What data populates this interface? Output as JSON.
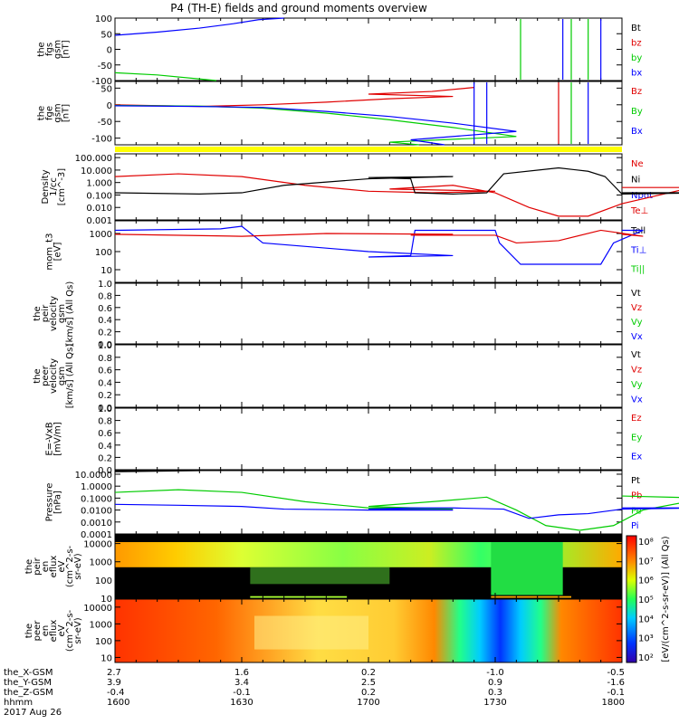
{
  "title": "P4 (TH-E) fields and ground moments overview",
  "colors": {
    "black": "#000000",
    "red": "#e00000",
    "green": "#00cc00",
    "blue": "#0000ff",
    "yellow": "#ffff00"
  },
  "chart_data": [
    {
      "id": "fgs",
      "type": "line",
      "ylabel": [
        "the",
        "fgs",
        "gsm",
        "[nT]"
      ],
      "ylim": [
        -100,
        100
      ],
      "yticks": [
        {
          "v": 100,
          "label": "100"
        },
        {
          "v": 50,
          "label": "50"
        },
        {
          "v": 0,
          "label": "0"
        },
        {
          "v": -50,
          "label": "-50"
        },
        {
          "v": -100,
          "label": "-100"
        }
      ],
      "legend": [
        {
          "name": "Bt",
          "color": "#000000"
        },
        {
          "name": "bz",
          "color": "#e00000"
        },
        {
          "name": "by",
          "color": "#00cc00"
        },
        {
          "name": "bx",
          "color": "#0000ff"
        }
      ],
      "series": [
        {
          "name": "bx",
          "color": "#0000ff",
          "x": [
            1600,
            1610,
            1620,
            1628,
            1634,
            1640
          ],
          "y": [
            45,
            55,
            68,
            82,
            95,
            105
          ]
        },
        {
          "name": "by",
          "color": "#00cc00",
          "x": [
            1600,
            1610,
            1620,
            1624
          ],
          "y": [
            -75,
            -82,
            -95,
            -102
          ]
        }
      ]
    },
    {
      "id": "fge",
      "type": "line",
      "ylabel": [
        "the",
        "fge",
        "gsm",
        "[nT]"
      ],
      "ylim": [
        -120,
        70
      ],
      "yticks": [
        {
          "v": 50,
          "label": "50"
        },
        {
          "v": 0,
          "label": "0"
        },
        {
          "v": -50,
          "label": "-50"
        },
        {
          "v": -100,
          "label": "-100"
        }
      ],
      "legend": [
        {
          "name": "Bz",
          "color": "#e00000"
        },
        {
          "name": "By",
          "color": "#00cc00"
        },
        {
          "name": "Bx",
          "color": "#0000ff"
        }
      ],
      "series": [
        {
          "name": "Bz",
          "color": "#e00000",
          "x": [
            1600,
            1620,
            1635,
            1650,
            1665,
            1680,
            1700,
            1715,
            1725
          ],
          "y": [
            0,
            -5,
            0,
            8,
            18,
            25,
            32,
            40,
            52
          ]
        },
        {
          "name": "By",
          "color": "#00cc00",
          "x": [
            1600,
            1620,
            1635,
            1650,
            1665,
            1680,
            1695,
            1705,
            1712
          ],
          "y": [
            -2,
            -4,
            -10,
            -25,
            -45,
            -68,
            -95,
            -112,
            -120
          ]
        },
        {
          "name": "Bx",
          "color": "#0000ff",
          "x": [
            1600,
            1620,
            1635,
            1650,
            1665,
            1680,
            1695,
            1710,
            1718
          ],
          "y": [
            -3,
            -5,
            -8,
            -20,
            -35,
            -55,
            -80,
            -105,
            -120
          ]
        }
      ]
    },
    {
      "id": "density",
      "type": "line",
      "scale": "log",
      "ylabel": [
        "Density",
        "1/cc",
        "[cm^-3]"
      ],
      "ylim": [
        0.001,
        200
      ],
      "yticks": [
        {
          "v": 100,
          "label": "100.000"
        },
        {
          "v": 10,
          "label": "10.000"
        },
        {
          "v": 1,
          "label": "1.000"
        },
        {
          "v": 0.1,
          "label": "0.100"
        },
        {
          "v": 0.01,
          "label": "0.010"
        },
        {
          "v": 0.001,
          "label": "0.001"
        }
      ],
      "legend": [
        {
          "name": "Ne",
          "color": "#e00000"
        },
        {
          "name": "Ni",
          "color": "#000000"
        },
        {
          "name": "Npot",
          "color": "#0000ff"
        },
        {
          "name": "Te⊥",
          "color": "#e00000"
        }
      ],
      "series": [
        {
          "name": "Ne",
          "color": "#e00000",
          "x": [
            1600,
            1615,
            1630,
            1645,
            1660,
            1675,
            1690,
            1705,
            1720,
            1730,
            1738,
            1745,
            1752,
            1760,
            1775,
            1790,
            1800
          ],
          "y": [
            3,
            5,
            3,
            0.6,
            0.2,
            0.15,
            0.2,
            0.3,
            0.6,
            0.15,
            0.01,
            0.002,
            0.002,
            0.02,
            0.3,
            0.4,
            0.4
          ]
        },
        {
          "name": "Ni",
          "color": "#000000",
          "x": [
            1600,
            1620,
            1630,
            1640,
            1660,
            1680,
            1700,
            1710,
            1711,
            1720,
            1728,
            1732,
            1745,
            1752,
            1756,
            1760,
            1780,
            1800
          ],
          "y": [
            0.15,
            0.12,
            0.15,
            0.6,
            2,
            3,
            2.5,
            2,
            0.15,
            0.12,
            0.15,
            5,
            15,
            8,
            3,
            0.12,
            0.15,
            0.15
          ]
        }
      ]
    },
    {
      "id": "mom_t3",
      "type": "line",
      "scale": "log",
      "ylabel": [
        "mom_t3",
        "[eV]"
      ],
      "ylim": [
        2,
        5000
      ],
      "yticks": [
        {
          "v": 1000,
          "label": "1000"
        },
        {
          "v": 100,
          "label": "100"
        },
        {
          "v": 10,
          "label": "10"
        }
      ],
      "legend": [
        {
          "name": "Tell",
          "color": "#000000"
        },
        {
          "name": "Ti⊥",
          "color": "#0000ff"
        },
        {
          "name": "Ti||",
          "color": "#00cc00"
        }
      ],
      "series": [
        {
          "name": "Ti",
          "color": "#0000ff",
          "x": [
            1600,
            1625,
            1630,
            1635,
            1660,
            1680,
            1700,
            1710,
            1711,
            1730,
            1731,
            1736,
            1755,
            1758,
            1765,
            1800
          ],
          "y": [
            1500,
            1800,
            2500,
            300,
            100,
            60,
            50,
            60,
            1500,
            1500,
            300,
            20,
            20,
            300,
            1500,
            1500
          ]
        },
        {
          "name": "Te",
          "color": "#e00000",
          "x": [
            1600,
            1630,
            1650,
            1680,
            1710,
            1730,
            1735,
            1745,
            1755,
            1765,
            1800
          ],
          "y": [
            900,
            700,
            1000,
            900,
            800,
            800,
            300,
            400,
            1500,
            700,
            900
          ]
        }
      ]
    },
    {
      "id": "peir_velocity",
      "type": "line",
      "ylabel": [
        "the",
        "peir",
        "velocity",
        "gsm",
        "[km/s] (All Qs)"
      ],
      "ylim": [
        0,
        1
      ],
      "yticks": [
        {
          "v": 1,
          "label": "1.0"
        },
        {
          "v": 0.8,
          "label": "0.8"
        },
        {
          "v": 0.6,
          "label": "0.6"
        },
        {
          "v": 0.4,
          "label": "0.4"
        },
        {
          "v": 0.2,
          "label": "0.2"
        },
        {
          "v": 0,
          "label": "0.0"
        }
      ],
      "legend": [
        {
          "name": "Vt",
          "color": "#000000"
        },
        {
          "name": "Vz",
          "color": "#e00000"
        },
        {
          "name": "Vy",
          "color": "#00cc00"
        },
        {
          "name": "Vx",
          "color": "#0000ff"
        }
      ],
      "series": []
    },
    {
      "id": "peer_velocity",
      "type": "line",
      "ylabel": [
        "the",
        "peer",
        "velocity",
        "gsm",
        "[km/s] (All Qs)"
      ],
      "ylim": [
        0,
        1
      ],
      "yticks": [
        {
          "v": 1,
          "label": "1.0"
        },
        {
          "v": 0.8,
          "label": "0.8"
        },
        {
          "v": 0.6,
          "label": "0.6"
        },
        {
          "v": 0.4,
          "label": "0.4"
        },
        {
          "v": 0.2,
          "label": "0.2"
        },
        {
          "v": 0,
          "label": "0.0"
        }
      ],
      "legend": [
        {
          "name": "Vt",
          "color": "#000000"
        },
        {
          "name": "Vz",
          "color": "#e00000"
        },
        {
          "name": "Vy",
          "color": "#00cc00"
        },
        {
          "name": "Vx",
          "color": "#0000ff"
        }
      ],
      "series": []
    },
    {
      "id": "e_vxb",
      "type": "line",
      "ylabel": [
        "E=-VxB",
        "[mV/m]"
      ],
      "ylim": [
        0,
        1
      ],
      "yticks": [
        {
          "v": 1,
          "label": "1.0"
        },
        {
          "v": 0.8,
          "label": "0.8"
        },
        {
          "v": 0.6,
          "label": "0.6"
        },
        {
          "v": 0.4,
          "label": "0.4"
        },
        {
          "v": 0.2,
          "label": "0.2"
        },
        {
          "v": 0,
          "label": "0.0"
        }
      ],
      "legend": [
        {
          "name": "Ez",
          "color": "#e00000"
        },
        {
          "name": "Ey",
          "color": "#00cc00"
        },
        {
          "name": "Ex",
          "color": "#0000ff"
        }
      ],
      "series": []
    },
    {
      "id": "pressure",
      "type": "line",
      "scale": "log",
      "ylabel": [
        "Pressure",
        "[nPa]"
      ],
      "ylim": [
        0.0001,
        20
      ],
      "yticks": [
        {
          "v": 10,
          "label": "10.0000"
        },
        {
          "v": 1,
          "label": "1.0000"
        },
        {
          "v": 0.1,
          "label": "0.1000"
        },
        {
          "v": 0.01,
          "label": "0.0100"
        },
        {
          "v": 0.001,
          "label": "0.0010"
        },
        {
          "v": 0.0001,
          "label": "0.0001"
        }
      ],
      "legend": [
        {
          "name": "Pt",
          "color": "#000000"
        },
        {
          "name": "Pb",
          "color": "#e00000"
        },
        {
          "name": "Pe",
          "color": "#00cc00"
        },
        {
          "name": "Pi",
          "color": "#0000ff"
        }
      ],
      "series": [
        {
          "name": "Pe",
          "color": "#00cc00",
          "x": [
            1600,
            1615,
            1630,
            1645,
            1660,
            1680,
            1700,
            1715,
            1728,
            1735,
            1742,
            1750,
            1758,
            1765,
            1780,
            1800
          ],
          "y": [
            0.3,
            0.5,
            0.3,
            0.05,
            0.015,
            0.012,
            0.02,
            0.05,
            0.12,
            0.01,
            0.0005,
            0.0002,
            0.0005,
            0.01,
            0.1,
            0.15
          ]
        },
        {
          "name": "Pi",
          "color": "#0000ff",
          "x": [
            1600,
            1615,
            1630,
            1640,
            1660,
            1680,
            1700,
            1710,
            1720,
            1732,
            1738,
            1745,
            1752,
            1760,
            1780,
            1800
          ],
          "y": [
            0.03,
            0.025,
            0.02,
            0.012,
            0.01,
            0.01,
            0.012,
            0.015,
            0.015,
            0.012,
            0.002,
            0.004,
            0.005,
            0.012,
            0.015,
            0.015
          ]
        },
        {
          "name": "Pt",
          "color": "#000000",
          "x": [
            1600,
            1620
          ],
          "y": [
            16,
            20
          ]
        }
      ]
    },
    {
      "id": "peir_spec",
      "type": "heatmap",
      "ylabel": [
        "the",
        "peir",
        "en",
        "eflux",
        "eV",
        "(cm^2-s-",
        "sr-eV)"
      ],
      "ylim": [
        10,
        30000
      ],
      "yticks": [
        {
          "v": 10000,
          "label": "10000"
        },
        {
          "v": 1000,
          "label": "1000"
        },
        {
          "v": 100,
          "label": "100"
        },
        {
          "v": 10,
          "label": "10"
        }
      ]
    },
    {
      "id": "peer_spec",
      "type": "heatmap",
      "ylabel": [
        "the",
        "peer",
        "en",
        "eflux",
        "eV",
        "(cm^2-s-",
        "sr-eV)"
      ],
      "ylim": [
        5,
        30000
      ],
      "yticks": [
        {
          "v": 10000,
          "label": "10000"
        },
        {
          "v": 1000,
          "label": "1000"
        },
        {
          "v": 100,
          "label": "100"
        },
        {
          "v": 10,
          "label": "10"
        }
      ]
    }
  ],
  "colorbar": {
    "ticks": [
      "10⁸",
      "10⁷",
      "10⁶",
      "10⁵",
      "10⁴",
      "10³",
      "10²"
    ],
    "label": "[eV/(cm^2-s-sr-eV)] (All Qs)"
  },
  "xaxis": {
    "labels": [
      "the_X-GSM",
      "the_Y-GSM",
      "the_Z-GSM",
      "hhmm",
      "2017 Aug 26"
    ],
    "ticks": [
      {
        "x": 1600,
        "vals": [
          "2.7",
          "3.9",
          "-0.4",
          "1600"
        ]
      },
      {
        "x": 1630,
        "vals": [
          "1.6",
          "3.4",
          "-0.1",
          "1630"
        ]
      },
      {
        "x": 1700,
        "vals": [
          "0.2",
          "2.5",
          "0.2",
          "1700"
        ]
      },
      {
        "x": 1730,
        "vals": [
          "-1.0",
          "0.9",
          "0.3",
          "1730"
        ]
      },
      {
        "x": 1800,
        "vals": [
          "-0.5",
          "-1.6",
          "-0.1",
          "1800"
        ]
      }
    ]
  }
}
